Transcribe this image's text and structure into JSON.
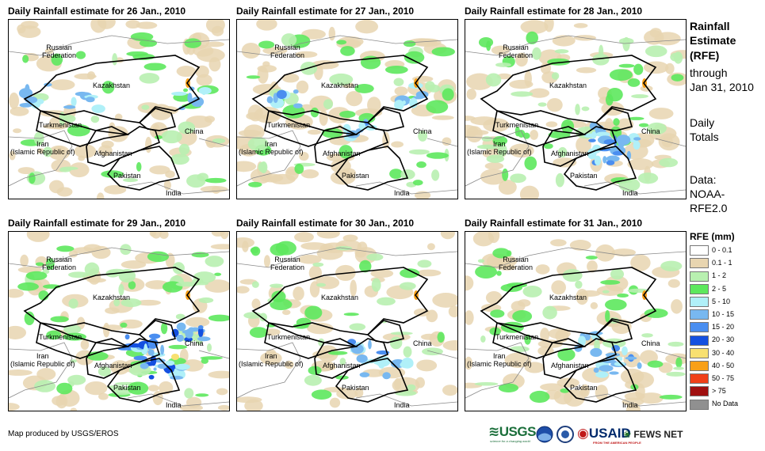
{
  "panels": [
    {
      "title": "Daily Rainfall estimate for 26 Jan., 2010",
      "intensity": 0.35,
      "focus": "west"
    },
    {
      "title": "Daily Rainfall estimate for 27 Jan., 2010",
      "intensity": 0.55,
      "focus": "central"
    },
    {
      "title": "Daily Rainfall estimate for 28 Jan., 2010",
      "intensity": 0.7,
      "focus": "east"
    },
    {
      "title": "Daily Rainfall estimate for 29 Jan., 2010",
      "intensity": 0.95,
      "focus": "east-heavy"
    },
    {
      "title": "Daily Rainfall estimate for 30 Jan., 2010",
      "intensity": 0.4,
      "focus": "east"
    },
    {
      "title": "Daily Rainfall estimate for 31 Jan., 2010",
      "intensity": 0.45,
      "focus": "east"
    }
  ],
  "country_labels": {
    "russia": "Russian\nFederation",
    "kazakhstan": "Kazakhstan",
    "turkmenistan": "Turkmenistan",
    "iran": "Iran\n(Islamic Republic of)",
    "afghanistan": "Afghanistan",
    "pakistan": "Pakistan",
    "china": "China",
    "india": "India"
  },
  "sidebar": {
    "heading": [
      "Rainfall",
      "Estimate",
      "(RFE)"
    ],
    "through": [
      "through",
      "Jan 31, 2010"
    ],
    "totals": [
      "Daily",
      "Totals"
    ],
    "data_source": [
      "Data:",
      "NOAA-",
      "RFE2.0"
    ]
  },
  "legend": {
    "title": "RFE (mm)",
    "items": [
      {
        "label": "0 - 0.1",
        "color": "#ffffff"
      },
      {
        "label": "0.1 - 1",
        "color": "#e8d5b0"
      },
      {
        "label": "1 - 2",
        "color": "#b8f0b0"
      },
      {
        "label": "2 - 5",
        "color": "#5de85d"
      },
      {
        "label": "5 - 10",
        "color": "#b0f0f8"
      },
      {
        "label": "10 - 15",
        "color": "#78b8f0"
      },
      {
        "label": "15 - 20",
        "color": "#4a8ef0"
      },
      {
        "label": "20 - 30",
        "color": "#1450e0"
      },
      {
        "label": "30 - 40",
        "color": "#f8e070"
      },
      {
        "label": "40 - 50",
        "color": "#f8a018"
      },
      {
        "label": "50 - 75",
        "color": "#f04018"
      },
      {
        "label": "> 75",
        "color": "#a01010"
      },
      {
        "label": "No Data",
        "color": "#909090"
      }
    ]
  },
  "credit": "Map produced by USGS/EROS",
  "logos": {
    "usgs": "USGS",
    "usgs_tagline": "science for a changing world",
    "usaid": "USAID",
    "usaid_tagline": "FROM THE AMERICAN PEOPLE",
    "fews": "FEWS NET"
  }
}
